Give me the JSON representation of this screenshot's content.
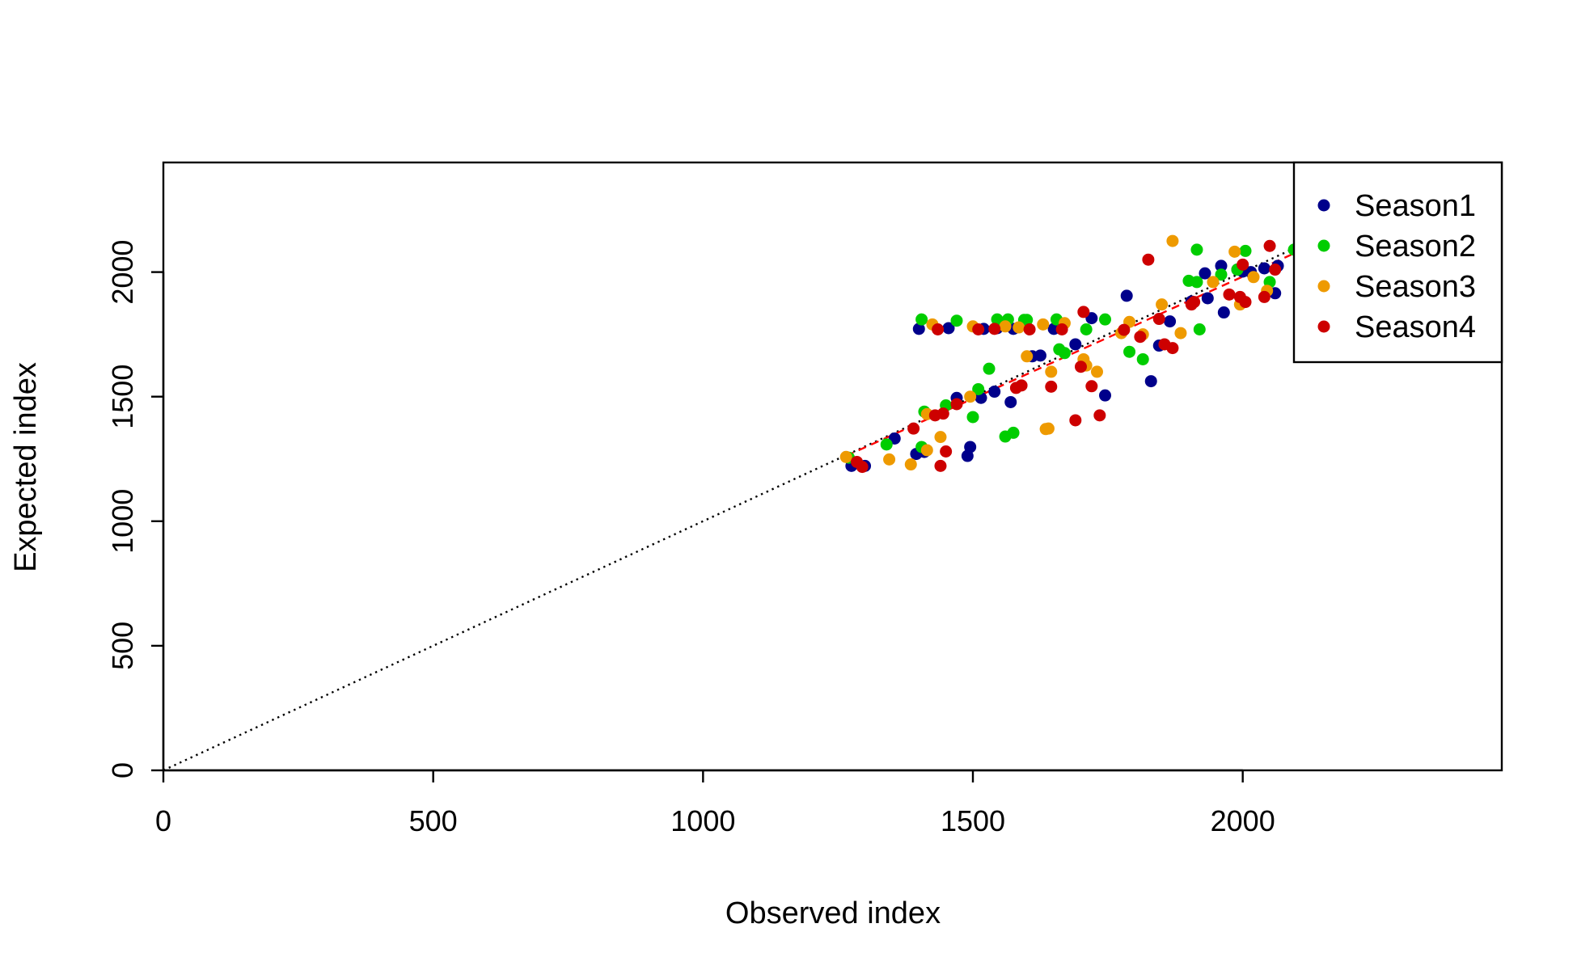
{
  "chart_data": {
    "type": "scatter",
    "title": "",
    "xlabel": "Observed index",
    "ylabel": "Expected index",
    "xlim": [
      0,
      2480
    ],
    "ylim": [
      0,
      2440
    ],
    "xticks": [
      0,
      500,
      1000,
      1500,
      2000
    ],
    "yticks": [
      0,
      500,
      1000,
      1500,
      2000
    ],
    "legend_position": "top-right",
    "reference_line": {
      "style": "dotted",
      "color": "#000000",
      "x": [
        0,
        2100
      ],
      "y": [
        0,
        2100
      ]
    },
    "fit_line": {
      "style": "dashed",
      "color": "#ff0000",
      "x": [
        1265,
        2090
      ],
      "y": [
        1262,
        2070
      ]
    },
    "series": [
      {
        "name": "Season1",
        "color": "#00008b",
        "points": [
          [
            1275,
            1222
          ],
          [
            1300,
            1222
          ],
          [
            1355,
            1332
          ],
          [
            1395,
            1270
          ],
          [
            1400,
            1772
          ],
          [
            1410,
            1278
          ],
          [
            1455,
            1775
          ],
          [
            1470,
            1495
          ],
          [
            1490,
            1262
          ],
          [
            1495,
            1298
          ],
          [
            1515,
            1495
          ],
          [
            1540,
            1520
          ],
          [
            1570,
            1478
          ],
          [
            1520,
            1772
          ],
          [
            1545,
            1775
          ],
          [
            1575,
            1772
          ],
          [
            1610,
            1662
          ],
          [
            1625,
            1665
          ],
          [
            1650,
            1772
          ],
          [
            1690,
            1710
          ],
          [
            1720,
            1815
          ],
          [
            1745,
            1505
          ],
          [
            1785,
            1905
          ],
          [
            1830,
            1562
          ],
          [
            1845,
            1705
          ],
          [
            1865,
            1802
          ],
          [
            1905,
            1882
          ],
          [
            1930,
            1995
          ],
          [
            1935,
            1895
          ],
          [
            1960,
            2025
          ],
          [
            1965,
            1838
          ],
          [
            1990,
            2010
          ],
          [
            2000,
            2002
          ],
          [
            2015,
            2000
          ],
          [
            2040,
            2015
          ],
          [
            2060,
            1915
          ],
          [
            2065,
            2025
          ]
        ]
      },
      {
        "name": "Season2",
        "color": "#00cd00",
        "points": [
          [
            1270,
            1255
          ],
          [
            1340,
            1308
          ],
          [
            1405,
            1298
          ],
          [
            1405,
            1810
          ],
          [
            1410,
            1440
          ],
          [
            1450,
            1465
          ],
          [
            1470,
            1805
          ],
          [
            1500,
            1418
          ],
          [
            1510,
            1530
          ],
          [
            1530,
            1612
          ],
          [
            1545,
            1810
          ],
          [
            1560,
            1340
          ],
          [
            1565,
            1810
          ],
          [
            1575,
            1355
          ],
          [
            1595,
            1808
          ],
          [
            1600,
            1808
          ],
          [
            1655,
            1810
          ],
          [
            1660,
            1690
          ],
          [
            1670,
            1675
          ],
          [
            1710,
            1770
          ],
          [
            1745,
            1810
          ],
          [
            1790,
            1680
          ],
          [
            1815,
            1650
          ],
          [
            1900,
            1965
          ],
          [
            1915,
            2090
          ],
          [
            1915,
            1960
          ],
          [
            1920,
            1770
          ],
          [
            1960,
            1990
          ],
          [
            1990,
            2010
          ],
          [
            2005,
            2085
          ],
          [
            2050,
            1960
          ],
          [
            2095,
            2090
          ]
        ]
      },
      {
        "name": "Season3",
        "color": "#ee9a00",
        "points": [
          [
            1265,
            1258
          ],
          [
            1345,
            1248
          ],
          [
            1385,
            1228
          ],
          [
            1415,
            1285
          ],
          [
            1415,
            1430
          ],
          [
            1425,
            1790
          ],
          [
            1440,
            1338
          ],
          [
            1495,
            1500
          ],
          [
            1500,
            1782
          ],
          [
            1560,
            1782
          ],
          [
            1585,
            1778
          ],
          [
            1600,
            1662
          ],
          [
            1630,
            1790
          ],
          [
            1635,
            1370
          ],
          [
            1640,
            1372
          ],
          [
            1645,
            1600
          ],
          [
            1670,
            1795
          ],
          [
            1705,
            1650
          ],
          [
            1710,
            1625
          ],
          [
            1730,
            1600
          ],
          [
            1775,
            1755
          ],
          [
            1790,
            1800
          ],
          [
            1815,
            1750
          ],
          [
            1850,
            1870
          ],
          [
            1870,
            2125
          ],
          [
            1885,
            1755
          ],
          [
            1945,
            1960
          ],
          [
            1985,
            2082
          ],
          [
            1995,
            1870
          ],
          [
            2020,
            1980
          ],
          [
            2045,
            1925
          ]
        ]
      },
      {
        "name": "Season4",
        "color": "#cd0000",
        "points": [
          [
            1285,
            1238
          ],
          [
            1295,
            1218
          ],
          [
            1390,
            1372
          ],
          [
            1430,
            1425
          ],
          [
            1440,
            1222
          ],
          [
            1445,
            1432
          ],
          [
            1450,
            1280
          ],
          [
            1435,
            1770
          ],
          [
            1470,
            1470
          ],
          [
            1510,
            1770
          ],
          [
            1540,
            1772
          ],
          [
            1580,
            1535
          ],
          [
            1590,
            1545
          ],
          [
            1605,
            1770
          ],
          [
            1645,
            1540
          ],
          [
            1665,
            1770
          ],
          [
            1690,
            1405
          ],
          [
            1700,
            1620
          ],
          [
            1705,
            1840
          ],
          [
            1720,
            1542
          ],
          [
            1735,
            1425
          ],
          [
            1780,
            1768
          ],
          [
            1810,
            1740
          ],
          [
            1825,
            2050
          ],
          [
            1845,
            1812
          ],
          [
            1855,
            1710
          ],
          [
            1870,
            1695
          ],
          [
            1905,
            1870
          ],
          [
            1910,
            1880
          ],
          [
            1975,
            1910
          ],
          [
            1995,
            1900
          ],
          [
            2005,
            1880
          ],
          [
            2000,
            2030
          ],
          [
            2040,
            1900
          ],
          [
            2050,
            2105
          ],
          [
            2060,
            2010
          ]
        ]
      }
    ]
  }
}
